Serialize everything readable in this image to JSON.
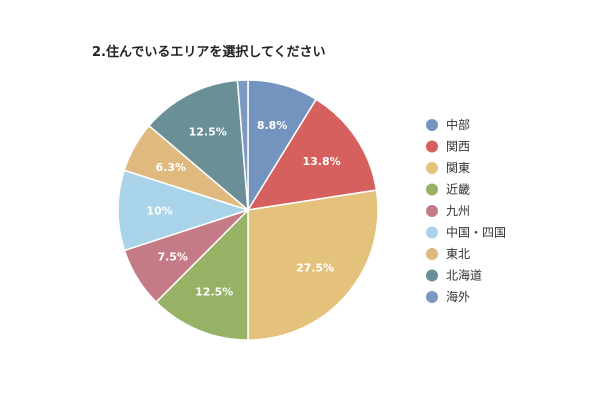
{
  "chart_data": {
    "type": "pie",
    "title": "2.住んでいるエリアを選択してください",
    "categories": [
      "中部",
      "関西",
      "関東",
      "近畿",
      "九州",
      "中国・四国",
      "東北",
      "北海道",
      "海外"
    ],
    "values": [
      8.8,
      13.8,
      27.5,
      12.5,
      7.5,
      10,
      6.3,
      12.5,
      1.3
    ],
    "labels": [
      "8.8%",
      "13.8%",
      "27.5%",
      "12.5%",
      "7.5%",
      "10%",
      "6.3%",
      "12.5%",
      ""
    ],
    "colors": [
      "#7394bf",
      "#d5605d",
      "#e5c27b",
      "#96b265",
      "#c47b86",
      "#a8d3e8",
      "#e0b97e",
      "#6b8f97",
      "#7b99c3"
    ],
    "legend_position": "right"
  }
}
